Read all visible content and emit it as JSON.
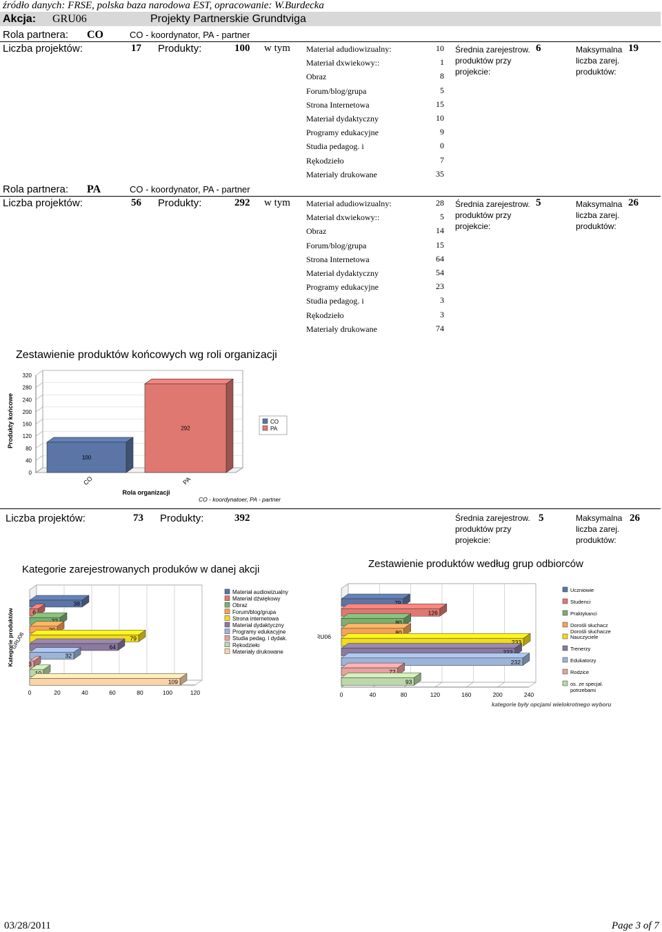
{
  "source": "źródło danych: FRSE, polska baza narodowa EST, opracowanie: W.Burdecka",
  "header": {
    "akcja_label": "Akcja:",
    "akcja_code": "GRU06",
    "akcja_name": "Projekty Partnerskie Grundtviga"
  },
  "labels": {
    "rola": "Rola partnera:",
    "liczba": "Liczba projektów:",
    "produkty": "Produkty:",
    "w_tym": "w tym",
    "srednia1": "Średnia zarejestrow.",
    "srednia2": "produktów przy",
    "srednia3": "projekcie:",
    "max1": "Maksymalna",
    "max2": "liczba zarej.",
    "max3": "produktów:"
  },
  "categories": [
    "Materiał adudiowizualny:",
    "Materiał dxwiekowy::",
    "Obraz",
    "Forum/blog/grupa",
    "Strona Internetowa",
    "Materiał dydaktyczny",
    "Programy edukacyjne",
    "Studia pedagog. i",
    "Rękodzieło",
    "Materiały drukowane"
  ],
  "roles": [
    {
      "code": "CO",
      "desc": "CO - koordynator, PA - partner",
      "projects": "17",
      "products": "100",
      "values": [
        "10",
        "1",
        "8",
        "5",
        "15",
        "10",
        "9",
        "0",
        "7",
        "35"
      ],
      "avg": "6",
      "max": "19"
    },
    {
      "code": "PA",
      "desc": "CO - koordynator, PA - partner",
      "projects": "56",
      "products": "292",
      "values": [
        "28",
        "5",
        "14",
        "15",
        "64",
        "54",
        "23",
        "3",
        "3",
        "74"
      ],
      "avg": "5",
      "max": "26"
    }
  ],
  "total": {
    "projects": "73",
    "products": "392",
    "avg": "5",
    "max": "26"
  },
  "chart1_note": "CO - koordynatoer, PA - partner",
  "chart_data": [
    {
      "type": "bar",
      "title": "Zestawienie produktów końcowych wg roli organizacji",
      "xlabel": "Rola organizacji",
      "ylabel": "Produkty końcowe",
      "categories": [
        "CO",
        "PA"
      ],
      "series": [
        {
          "name": "CO",
          "values": [
            100,
            null
          ],
          "color": "#5a75a6"
        },
        {
          "name": "PA",
          "values": [
            null,
            292
          ],
          "color": "#e07872"
        }
      ],
      "ylim": [
        0,
        320
      ],
      "yticks": [
        "0",
        "40",
        "80",
        "120",
        "160",
        "200",
        "240",
        "280",
        "320"
      ],
      "legend": "right"
    },
    {
      "type": "bar",
      "orientation": "horizontal",
      "title": "Kategorie zarejestrowanych produków w danej akcji",
      "ylabel": "Kategorie produktów",
      "category": "GRU06",
      "xlim": [
        0,
        120
      ],
      "xticks": [
        "0",
        "20",
        "40",
        "60",
        "80",
        "100",
        "120"
      ],
      "legend": "right",
      "series": [
        {
          "name": "Materiał audiowizualny",
          "value": 38,
          "color": "#5a75a6"
        },
        {
          "name": "Materiał dźwiękowy",
          "value": 6,
          "color": "#e07872"
        },
        {
          "name": "Obraz",
          "value": 22,
          "color": "#7ab070"
        },
        {
          "name": "Forum/blog/grupa",
          "value": 20,
          "color": "#f7a35a"
        },
        {
          "name": "Strona internetowa",
          "value": 79,
          "color": "#f2dc1c"
        },
        {
          "name": "Materiał dydaktyczny",
          "value": 64,
          "color": "#8a7aa0"
        },
        {
          "name": "Programy edukacyjne",
          "value": 32,
          "color": "#9cb4d8"
        },
        {
          "name": "Studia pedag. i dydak.",
          "value": 3,
          "color": "#e8a0a0"
        },
        {
          "name": "Rękodzieło",
          "value": 10,
          "color": "#bcd8a8"
        },
        {
          "name": "Materiały drukowane",
          "value": 109,
          "color": "#fbd5a8"
        }
      ]
    },
    {
      "type": "bar",
      "orientation": "horizontal",
      "title": "Zestawienie produktów według grup odbiorców",
      "category": "GRU06",
      "xlim": [
        0,
        240
      ],
      "xticks": [
        "0",
        "40",
        "80",
        "120",
        "160",
        "200",
        "240"
      ],
      "legend": "right",
      "footnote": "kategorie były opcjami wielokrotnego wyboru",
      "series": [
        {
          "name": "Uczniowie",
          "value": 79,
          "color": "#5a75a6"
        },
        {
          "name": "Studenci",
          "value": 126,
          "color": "#e07872"
        },
        {
          "name": "Praktykanci",
          "value": 80,
          "color": "#7ab070"
        },
        {
          "name": "Dorośli słuchacze",
          "value": 80,
          "color": "#f7a35a"
        },
        {
          "name": "Nauczyciele",
          "value": 233,
          "color": "#f2dc1c"
        },
        {
          "name": "Trenerzy",
          "value": 222,
          "color": "#8a7aa0"
        },
        {
          "name": "Edukatorzy",
          "value": 232,
          "color": "#9cb4d8"
        },
        {
          "name": "Rodzice",
          "value": 72,
          "color": "#e8a0a0"
        },
        {
          "name": "os. ze specjal. potrzebami",
          "value": 93,
          "color": "#bcd8a8"
        }
      ]
    }
  ],
  "footer": {
    "date": "03/28/2011",
    "page": "Page 3 of 7"
  }
}
